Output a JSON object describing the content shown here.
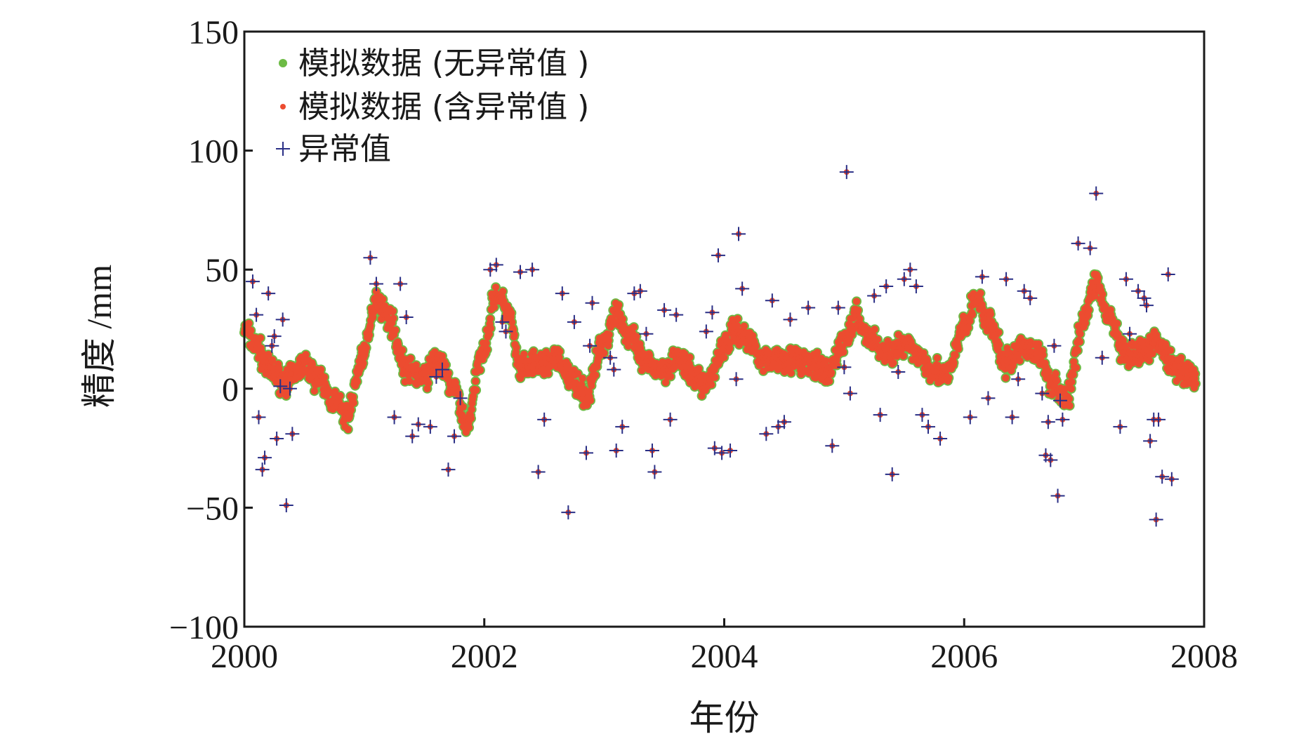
{
  "chart_data": {
    "type": "scatter",
    "title": "",
    "xlabel": "年份",
    "ylabel": "精度 /mm",
    "xlim": [
      2000,
      2008
    ],
    "ylim": [
      -100,
      150
    ],
    "xticks": [
      2000,
      2002,
      2004,
      2006,
      2008
    ],
    "xtick_labels": [
      "2000",
      "2002",
      "2004",
      "2006",
      "2008"
    ],
    "yticks": [
      150,
      100,
      50,
      0,
      -50,
      -100
    ],
    "ytick_labels": [
      "150",
      "100",
      "50",
      "0",
      "−50",
      "−100"
    ],
    "legend_position": "top-left",
    "colors": {
      "clean": "#6dbb45",
      "with_outliers": "#ec4c30",
      "outlier": "#2a2f86"
    },
    "series": [
      {
        "name": "模拟数据 (无异常值 )",
        "marker": "circle",
        "curve": {
          "x": [
            2000.0,
            2000.1,
            2000.2,
            2000.35,
            2000.5,
            2000.6,
            2000.75,
            2000.85,
            2001.0,
            2001.1,
            2001.2,
            2001.35,
            2001.5,
            2001.6,
            2001.75,
            2001.85,
            2002.0,
            2002.1,
            2002.2,
            2002.3,
            2002.45,
            2002.6,
            2002.75,
            2002.85,
            2003.0,
            2003.1,
            2003.2,
            2003.35,
            2003.5,
            2003.6,
            2003.75,
            2003.85,
            2004.0,
            2004.1,
            2004.2,
            2004.35,
            2004.5,
            2004.6,
            2004.75,
            2004.85,
            2005.0,
            2005.1,
            2005.2,
            2005.35,
            2005.5,
            2005.6,
            2005.75,
            2005.85,
            2006.0,
            2006.1,
            2006.2,
            2006.35,
            2006.5,
            2006.6,
            2006.75,
            2006.85,
            2007.0,
            2007.1,
            2007.2,
            2007.35,
            2007.5,
            2007.6,
            2007.75,
            2007.9
          ],
          "y": [
            25,
            18,
            8,
            3,
            10,
            5,
            -5,
            -12,
            15,
            38,
            30,
            8,
            5,
            12,
            0,
            -15,
            18,
            40,
            32,
            8,
            10,
            12,
            3,
            -3,
            20,
            33,
            22,
            10,
            8,
            13,
            5,
            2,
            18,
            25,
            20,
            12,
            13,
            12,
            10,
            5,
            20,
            30,
            22,
            15,
            18,
            15,
            8,
            5,
            25,
            38,
            28,
            10,
            18,
            15,
            2,
            -5,
            30,
            45,
            30,
            13,
            15,
            20,
            10,
            5
          ]
        }
      },
      {
        "name": "模拟数据 (含异常值 )",
        "marker": "circle-small"
      },
      {
        "name": "异常值",
        "marker": "plus",
        "points": [
          [
            2000.07,
            45
          ],
          [
            2000.1,
            31
          ],
          [
            2000.12,
            -12
          ],
          [
            2000.15,
            -34
          ],
          [
            2000.17,
            -29
          ],
          [
            2000.2,
            40
          ],
          [
            2000.23,
            18
          ],
          [
            2000.25,
            22
          ],
          [
            2000.27,
            -21
          ],
          [
            2000.3,
            1
          ],
          [
            2000.32,
            29
          ],
          [
            2000.35,
            -49
          ],
          [
            2000.38,
            0
          ],
          [
            2000.4,
            -19
          ],
          [
            2001.05,
            55
          ],
          [
            2001.1,
            44
          ],
          [
            2001.25,
            -12
          ],
          [
            2001.3,
            44
          ],
          [
            2001.35,
            30
          ],
          [
            2001.4,
            -20
          ],
          [
            2001.45,
            -15
          ],
          [
            2001.55,
            -16
          ],
          [
            2001.6,
            5
          ],
          [
            2001.65,
            8
          ],
          [
            2001.7,
            -34
          ],
          [
            2001.75,
            -20
          ],
          [
            2001.8,
            -4
          ],
          [
            2002.05,
            50
          ],
          [
            2002.1,
            52
          ],
          [
            2002.15,
            28
          ],
          [
            2002.18,
            24
          ],
          [
            2002.3,
            49
          ],
          [
            2002.4,
            50
          ],
          [
            2002.45,
            -35
          ],
          [
            2002.5,
            -13
          ],
          [
            2002.65,
            40
          ],
          [
            2002.7,
            -52
          ],
          [
            2002.75,
            28
          ],
          [
            2002.85,
            -27
          ],
          [
            2002.88,
            18
          ],
          [
            2002.9,
            36
          ],
          [
            2003.05,
            13
          ],
          [
            2003.08,
            8
          ],
          [
            2003.1,
            -26
          ],
          [
            2003.15,
            -16
          ],
          [
            2003.25,
            40
          ],
          [
            2003.3,
            41
          ],
          [
            2003.35,
            23
          ],
          [
            2003.4,
            -26
          ],
          [
            2003.42,
            -35
          ],
          [
            2003.5,
            33
          ],
          [
            2003.55,
            -13
          ],
          [
            2003.6,
            31
          ],
          [
            2003.85,
            24
          ],
          [
            2003.9,
            32
          ],
          [
            2003.92,
            -25
          ],
          [
            2003.95,
            56
          ],
          [
            2003.98,
            -27
          ],
          [
            2004.05,
            -26
          ],
          [
            2004.1,
            4
          ],
          [
            2004.12,
            65
          ],
          [
            2004.15,
            42
          ],
          [
            2004.35,
            -19
          ],
          [
            2004.4,
            37
          ],
          [
            2004.45,
            -16
          ],
          [
            2004.5,
            -14
          ],
          [
            2004.55,
            29
          ],
          [
            2004.7,
            34
          ],
          [
            2004.9,
            -24
          ],
          [
            2004.95,
            34
          ],
          [
            2005.0,
            9
          ],
          [
            2005.02,
            91
          ],
          [
            2005.05,
            -2
          ],
          [
            2005.25,
            39
          ],
          [
            2005.3,
            -11
          ],
          [
            2005.35,
            43
          ],
          [
            2005.4,
            -36
          ],
          [
            2005.45,
            7
          ],
          [
            2005.5,
            46
          ],
          [
            2005.55,
            50
          ],
          [
            2005.6,
            43
          ],
          [
            2005.65,
            -11
          ],
          [
            2005.7,
            -16
          ],
          [
            2005.8,
            -21
          ],
          [
            2006.05,
            -12
          ],
          [
            2006.15,
            47
          ],
          [
            2006.2,
            -4
          ],
          [
            2006.35,
            46
          ],
          [
            2006.4,
            -12
          ],
          [
            2006.45,
            4
          ],
          [
            2006.5,
            41
          ],
          [
            2006.55,
            38
          ],
          [
            2006.65,
            -2
          ],
          [
            2006.68,
            -28
          ],
          [
            2006.7,
            -14
          ],
          [
            2006.72,
            -30
          ],
          [
            2006.75,
            18
          ],
          [
            2006.78,
            -45
          ],
          [
            2006.8,
            -5
          ],
          [
            2006.82,
            -13
          ],
          [
            2006.95,
            61
          ],
          [
            2007.05,
            59
          ],
          [
            2007.1,
            82
          ],
          [
            2007.15,
            13
          ],
          [
            2007.3,
            -16
          ],
          [
            2007.35,
            46
          ],
          [
            2007.45,
            41
          ],
          [
            2007.5,
            38
          ],
          [
            2007.52,
            35
          ],
          [
            2007.55,
            -22
          ],
          [
            2007.58,
            -13
          ],
          [
            2007.6,
            -55
          ],
          [
            2007.62,
            -13
          ],
          [
            2007.65,
            -37
          ],
          [
            2007.7,
            48
          ],
          [
            2007.73,
            -38
          ],
          [
            2007.38,
            23
          ]
        ]
      }
    ]
  }
}
